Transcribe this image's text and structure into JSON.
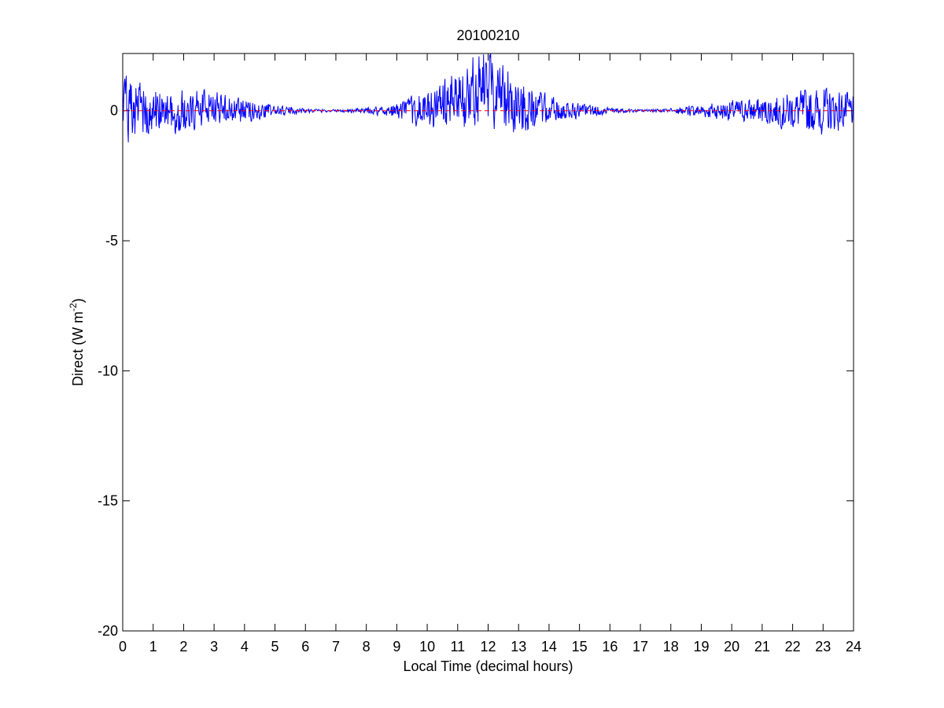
{
  "chart_data": {
    "type": "line",
    "title": "20100210",
    "xlabel": "Local Time (decimal hours)",
    "ylabel": "Direct (W m",
    "ylabel_sup": "-2",
    "ylabel_close": ")",
    "xlim": [
      0,
      24
    ],
    "ylim": [
      -20,
      2.2
    ],
    "xticks": [
      "0",
      "1",
      "2",
      "3",
      "4",
      "5",
      "6",
      "7",
      "8",
      "9",
      "10",
      "11",
      "12",
      "13",
      "14",
      "15",
      "16",
      "17",
      "18",
      "19",
      "20",
      "21",
      "22",
      "23",
      "24"
    ],
    "yticks": [
      "0",
      "-5",
      "-10",
      "-15",
      "-20"
    ],
    "ytick_values": [
      0,
      -5,
      -10,
      -15,
      -20
    ],
    "grid": false,
    "series": [
      {
        "color": "#0000ff",
        "style": "solid",
        "description": "direct irradiance residual noise, approx. 1-min samples",
        "envelope": [
          [
            0,
            1.4
          ],
          [
            1,
            1.0
          ],
          [
            2,
            0.9
          ],
          [
            3,
            0.8
          ],
          [
            4,
            0.5
          ],
          [
            5,
            0.25
          ],
          [
            6,
            0.1
          ],
          [
            7,
            0.05
          ],
          [
            8,
            0.12
          ],
          [
            9,
            0.3
          ],
          [
            10,
            0.9
          ],
          [
            11,
            1.3
          ],
          [
            12,
            1.7
          ],
          [
            13,
            1.2
          ],
          [
            14,
            0.6
          ],
          [
            15,
            0.3
          ],
          [
            16,
            0.12
          ],
          [
            17,
            0.05
          ],
          [
            18,
            0.1
          ],
          [
            19,
            0.3
          ],
          [
            20,
            0.45
          ],
          [
            21,
            0.55
          ],
          [
            22,
            0.8
          ],
          [
            23,
            1.0
          ],
          [
            24,
            0.7
          ]
        ],
        "mean_offset": [
          [
            0,
            0.0
          ],
          [
            10,
            0.0
          ],
          [
            11,
            0.4
          ],
          [
            12,
            1.0
          ],
          [
            12.5,
            0.6
          ],
          [
            13,
            0.2
          ],
          [
            14,
            0.0
          ],
          [
            24,
            0.0
          ]
        ]
      },
      {
        "color": "#ff0000",
        "style": "dashed",
        "description": "zero reference line",
        "x": [
          0,
          24
        ],
        "y": [
          0,
          0
        ]
      }
    ]
  }
}
